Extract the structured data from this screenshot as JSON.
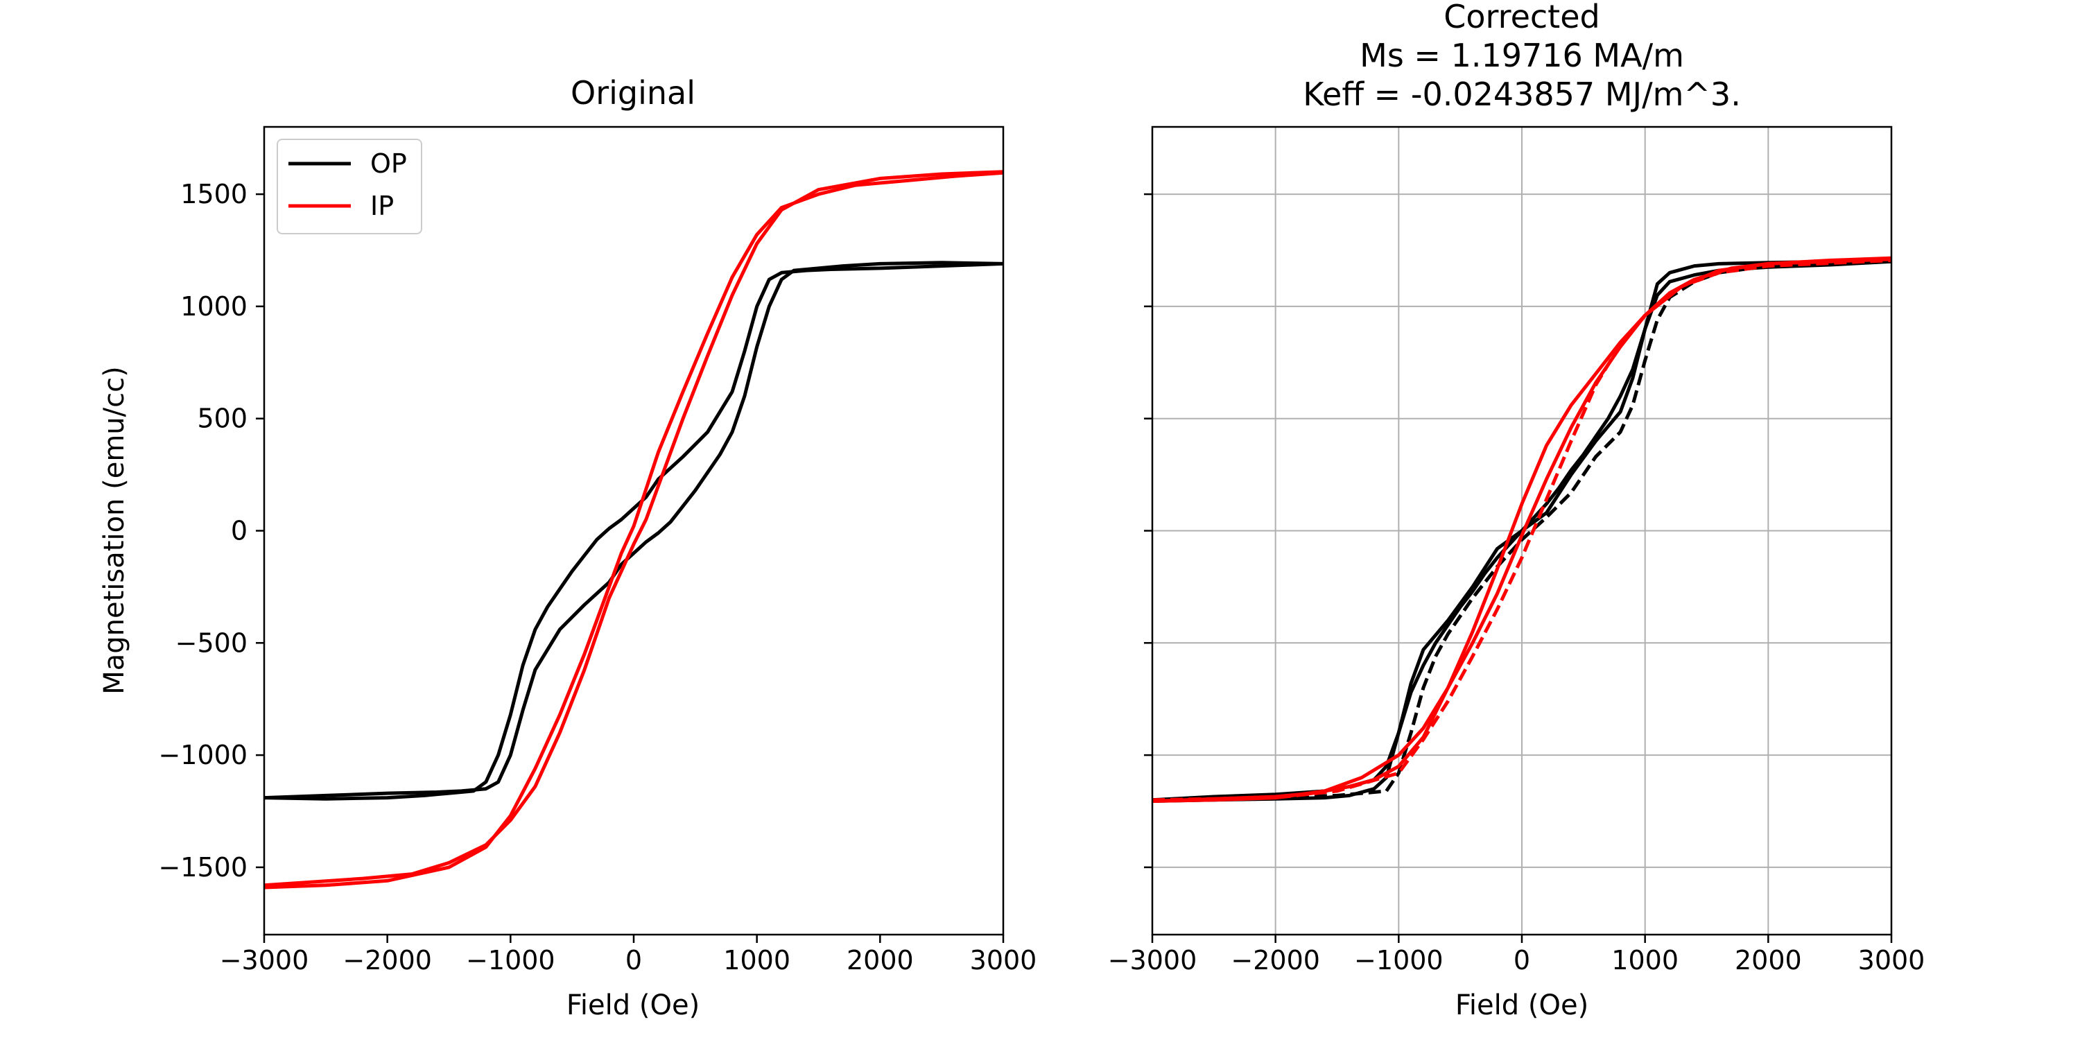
{
  "figure": {
    "ylabel": "Magnetisation (emu/cc)"
  },
  "chart_data": [
    {
      "type": "line",
      "title": "Original",
      "xlabel": "Field (Oe)",
      "ylabel": "Magnetisation (emu/cc)",
      "xlim": [
        -3000,
        3000
      ],
      "ylim": [
        -1800,
        1800
      ],
      "xticks": [
        -3000,
        -2000,
        -1000,
        0,
        1000,
        2000,
        3000
      ],
      "yticks": [
        -1500,
        -1000,
        -500,
        0,
        500,
        1000,
        1500
      ],
      "grid": false,
      "legend": {
        "placement": "upper left",
        "entries": [
          {
            "label": "OP",
            "color": "#000000"
          },
          {
            "label": "IP",
            "color": "#ff0000"
          }
        ]
      },
      "series": [
        {
          "name": "OP",
          "color": "#000000",
          "style": "solid",
          "branches": [
            {
              "x": [
                3000,
                2500,
                2000,
                1700,
                1500,
                1300,
                1200,
                1100,
                1000,
                900,
                800,
                700,
                600,
                500,
                400,
                300,
                200,
                100,
                0,
                -100,
                -200,
                -400,
                -600,
                -800,
                -900,
                -1000,
                -1100,
                -1200,
                -1400,
                -1600,
                -2000,
                -2500,
                -3000
              ],
              "y": [
                1190,
                1195,
                1190,
                1180,
                1170,
                1160,
                1120,
                1000,
                820,
                600,
                440,
                340,
                260,
                180,
                110,
                40,
                -10,
                -50,
                -100,
                -150,
                -230,
                -330,
                -440,
                -620,
                -800,
                -1000,
                -1120,
                -1150,
                -1160,
                -1165,
                -1170,
                -1180,
                -1190
              ]
            },
            {
              "x": [
                -3000,
                -2500,
                -2000,
                -1700,
                -1500,
                -1300,
                -1200,
                -1100,
                -1000,
                -900,
                -800,
                -700,
                -600,
                -500,
                -400,
                -300,
                -200,
                -100,
                0,
                100,
                200,
                400,
                600,
                800,
                900,
                1000,
                1100,
                1200,
                1400,
                1600,
                2000,
                2500,
                3000
              ],
              "y": [
                -1190,
                -1195,
                -1190,
                -1180,
                -1170,
                -1160,
                -1120,
                -1000,
                -820,
                -600,
                -440,
                -340,
                -260,
                -180,
                -110,
                -40,
                10,
                50,
                100,
                150,
                230,
                330,
                440,
                620,
                800,
                1000,
                1120,
                1150,
                1160,
                1165,
                1170,
                1180,
                1190
              ]
            }
          ]
        },
        {
          "name": "IP",
          "color": "#ff0000",
          "style": "solid",
          "branches": [
            {
              "x": [
                3000,
                2500,
                2000,
                1500,
                1200,
                1000,
                800,
                600,
                400,
                200,
                100,
                0,
                -200,
                -400,
                -600,
                -800,
                -1000,
                -1200,
                -1500,
                -1800,
                -2200,
                -2600,
                -3000
              ],
              "y": [
                1600,
                1590,
                1570,
                1520,
                1430,
                1280,
                1050,
                780,
                500,
                200,
                50,
                -60,
                -300,
                -620,
                -900,
                -1140,
                -1290,
                -1400,
                -1480,
                -1530,
                -1550,
                -1565,
                -1580
              ]
            },
            {
              "x": [
                -3000,
                -2500,
                -2000,
                -1500,
                -1200,
                -1000,
                -800,
                -600,
                -400,
                -200,
                -100,
                0,
                200,
                400,
                600,
                800,
                1000,
                1200,
                1500,
                1800,
                2200,
                2600,
                3000
              ],
              "y": [
                -1590,
                -1580,
                -1560,
                -1500,
                -1410,
                -1270,
                -1060,
                -820,
                -550,
                -250,
                -100,
                20,
                350,
                620,
                880,
                1130,
                1320,
                1440,
                1500,
                1540,
                1560,
                1580,
                1595
              ]
            }
          ]
        }
      ]
    },
    {
      "type": "line",
      "title": "Corrected",
      "subtitle": [
        "Ms = 1.19716 MA/m",
        "Keff = -0.0243857 MJ/m^3."
      ],
      "xlabel": "Field (Oe)",
      "xlim": [
        -3000,
        3000
      ],
      "ylim": [
        -1800,
        1800
      ],
      "xticks": [
        -3000,
        -2000,
        -1000,
        0,
        1000,
        2000,
        3000
      ],
      "yticks": [
        -1500,
        -1000,
        -500,
        0,
        500,
        1000,
        1500
      ],
      "ytick_labels_shown": false,
      "grid": true,
      "series": [
        {
          "color": "#000000",
          "style": "solid",
          "branches": [
            {
              "x": [
                3000,
                2500,
                2000,
                1600,
                1400,
                1200,
                1100,
                1000,
                900,
                800,
                700,
                600,
                500,
                400,
                300,
                200,
                100,
                0,
                -200,
                -400,
                -600,
                -800,
                -900,
                -1000,
                -1100,
                -1200,
                -1400,
                -1600,
                -2000,
                -2500,
                -3000
              ],
              "y": [
                1205,
                1200,
                1195,
                1190,
                1180,
                1150,
                1100,
                900,
                720,
                600,
                500,
                420,
                340,
                270,
                190,
                120,
                60,
                0,
                -80,
                -250,
                -400,
                -530,
                -680,
                -900,
                -1050,
                -1110,
                -1140,
                -1160,
                -1175,
                -1185,
                -1200
              ]
            },
            {
              "x": [
                -3000,
                -2500,
                -2000,
                -1600,
                -1400,
                -1200,
                -1100,
                -1000,
                -900,
                -800,
                -700,
                -600,
                -500,
                -400,
                -300,
                -200,
                -100,
                0,
                200,
                400,
                600,
                800,
                900,
                1000,
                1100,
                1200,
                1400,
                1600,
                2000,
                2500,
                3000
              ],
              "y": [
                -1205,
                -1200,
                -1195,
                -1190,
                -1180,
                -1150,
                -1100,
                -900,
                -720,
                -600,
                -500,
                -420,
                -340,
                -270,
                -190,
                -120,
                -60,
                0,
                80,
                250,
                400,
                530,
                680,
                900,
                1050,
                1110,
                1140,
                1160,
                1175,
                1185,
                1200
              ]
            }
          ]
        },
        {
          "color": "#000000",
          "style": "dashed",
          "branches": [
            {
              "x": [
                -3000,
                -2500,
                -2000,
                -1500,
                -1100,
                -1000,
                -900,
                -800,
                -700,
                -600,
                -500,
                -400,
                -300,
                -200,
                -100,
                0,
                200,
                400,
                600,
                800,
                900,
                1000,
                1100,
                1200,
                1400,
                1600,
                2000,
                2500,
                3000
              ],
              "y": [
                -1200,
                -1195,
                -1190,
                -1180,
                -1160,
                -1080,
                -900,
                -700,
                -560,
                -460,
                -380,
                -300,
                -230,
                -160,
                -100,
                -40,
                60,
                170,
                330,
                440,
                560,
                760,
                940,
                1040,
                1110,
                1150,
                1180,
                1195,
                1205
              ]
            }
          ]
        },
        {
          "color": "#ff0000",
          "style": "solid",
          "branches": [
            {
              "x": [
                3000,
                2500,
                2000,
                1600,
                1300,
                1000,
                800,
                600,
                400,
                200,
                0,
                -200,
                -400,
                -600,
                -800,
                -1000,
                -1200,
                -1400,
                -1700,
                -2000,
                -2500,
                -3000
              ],
              "y": [
                1215,
                1205,
                1190,
                1160,
                1090,
                960,
                840,
                700,
                560,
                380,
                120,
                -170,
                -450,
                -700,
                -920,
                -1050,
                -1110,
                -1140,
                -1170,
                -1185,
                -1195,
                -1205
              ]
            },
            {
              "x": [
                -3000,
                -2500,
                -2000,
                -1600,
                -1300,
                -1000,
                -800,
                -600,
                -400,
                -200,
                0,
                200,
                400,
                600,
                800,
                1000,
                1200,
                1400,
                1700,
                2000,
                2500,
                3000
              ],
              "y": [
                -1205,
                -1200,
                -1190,
                -1160,
                -1100,
                -1000,
                -880,
                -700,
                -500,
                -280,
                -20,
                230,
                460,
                660,
                820,
                960,
                1060,
                1120,
                1170,
                1190,
                1200,
                1210
              ]
            }
          ]
        },
        {
          "color": "#ff0000",
          "style": "dashed",
          "branches": [
            {
              "x": [
                -3000,
                -2000,
                -1500,
                -1000,
                -800,
                -600,
                -400,
                -200,
                0,
                200,
                400,
                600,
                800,
                1000,
                1300,
                1600,
                2000,
                3000
              ],
              "y": [
                -1200,
                -1190,
                -1160,
                -1080,
                -930,
                -760,
                -560,
                -350,
                -120,
                140,
                400,
                650,
                830,
                960,
                1090,
                1150,
                1180,
                1205
              ]
            }
          ]
        }
      ]
    }
  ]
}
